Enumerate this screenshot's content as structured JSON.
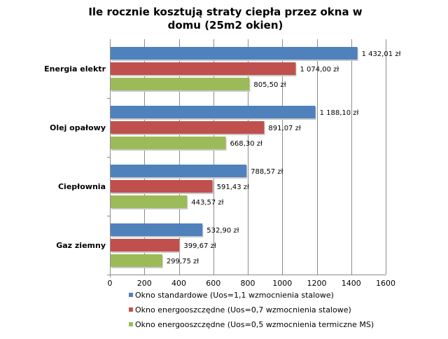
{
  "chart_data": {
    "type": "bar",
    "orientation": "horizontal",
    "title": "Ile rocznie kosztują straty ciepła przez okna w domu (25m2 okien)",
    "title_lines": [
      "Ile rocznie kosztują straty ciepła przez okna w",
      "domu (25m2 okien)"
    ],
    "categories": [
      "Energia elektr",
      "Olej opałowy",
      "Ciepłownia",
      "Gaz ziemny"
    ],
    "series": [
      {
        "name": "Okno standardowe (Uos=1,1 wzmocnienia stalowe)",
        "color": "#4f81bd",
        "values": [
          1432.01,
          1188.1,
          788.57,
          532.9
        ],
        "labels": [
          "1 432,01 zł",
          "1 188,10 zł",
          "788,57 zł",
          "532,90 zł"
        ]
      },
      {
        "name": "Okno energooszczędne (Uos=0,7 wzmocnienia stalowe)",
        "color": "#c0504d",
        "values": [
          1074.0,
          891.07,
          591.43,
          399.67
        ],
        "labels": [
          "1 074,00 zł",
          "891,07 zł",
          "591,43 zł",
          "399,67 zł"
        ]
      },
      {
        "name": "Okno energooszczędne (Uos=0,5 wzmocnienia termiczne MS)",
        "color": "#9bbb59",
        "values": [
          805.5,
          668.3,
          443.57,
          299.75
        ],
        "labels": [
          "805,50 zł",
          "668,30 zł",
          "443,57 zł",
          "299,75 zł"
        ]
      }
    ],
    "xlim": [
      0,
      1600
    ],
    "xticks": [
      0,
      200,
      400,
      600,
      800,
      1000,
      1200,
      1400,
      1600
    ],
    "xtick_labels": [
      "0",
      "200",
      "400",
      "600",
      "800",
      "1000",
      "1200",
      "1400",
      "1600"
    ],
    "grid": true,
    "legend_position": "bottom"
  }
}
